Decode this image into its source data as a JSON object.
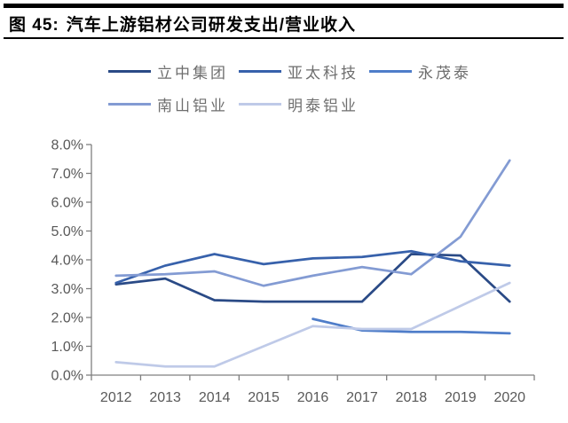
{
  "header": {
    "figure_label": "图 45:",
    "title": "汽车上游铝材公司研发支出/营业收入"
  },
  "chart_data": {
    "type": "line",
    "title": "汽车上游铝材公司研发支出/营业收入",
    "xlabel": "",
    "ylabel": "",
    "unit": "%",
    "categories": [
      "2012",
      "2013",
      "2014",
      "2015",
      "2016",
      "2017",
      "2018",
      "2019",
      "2020"
    ],
    "series": [
      {
        "name": "立中集团",
        "color": "#2a4a86",
        "values": [
          3.15,
          3.35,
          2.6,
          2.55,
          2.55,
          2.55,
          4.2,
          4.15,
          2.55
        ]
      },
      {
        "name": "亚太科技",
        "color": "#3761ab",
        "values": [
          3.2,
          3.8,
          4.2,
          3.85,
          4.05,
          4.1,
          4.3,
          3.95,
          3.8
        ]
      },
      {
        "name": "永茂泰",
        "color": "#4f7dc9",
        "values": [
          null,
          null,
          null,
          null,
          1.95,
          1.55,
          1.5,
          1.5,
          1.45
        ]
      },
      {
        "name": "南山铝业",
        "color": "#839bd3",
        "values": [
          3.45,
          3.5,
          3.6,
          3.1,
          3.45,
          3.75,
          3.5,
          4.8,
          7.45
        ]
      },
      {
        "name": "明泰铝业",
        "color": "#bfcae8",
        "values": [
          0.45,
          0.3,
          0.3,
          1.0,
          1.7,
          1.6,
          1.6,
          2.4,
          3.2
        ]
      }
    ],
    "ylim": [
      0,
      8
    ],
    "ytick_labels": [
      "0.0%",
      "1.0%",
      "2.0%",
      "3.0%",
      "4.0%",
      "5.0%",
      "6.0%",
      "7.0%",
      "8.0%"
    ],
    "grid": false,
    "legend_position": "top",
    "axis_color": "#7f7f7f",
    "tick_label_color": "#595959"
  }
}
